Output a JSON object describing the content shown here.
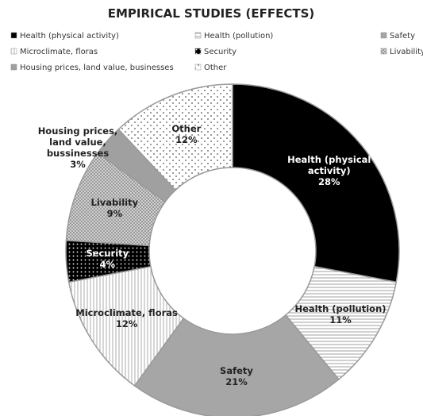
{
  "chart_data": {
    "type": "donut",
    "title": "EMPIRICAL STUDIES  (EFFECTS)",
    "categories": [
      "Health (physical activity)",
      "Health (pollution)",
      "Safety",
      "Microclimate, floras",
      "Security",
      "Livability",
      "Housing prices, land value, businesses",
      "Other"
    ],
    "data_labels": [
      "Health (physical activity)",
      "Health (pollution)",
      "Safety",
      "Microclimate, floras",
      "Security",
      "Livability",
      "Housing prices, land value, bussinesses",
      "Other"
    ],
    "values": [
      28,
      11,
      21,
      12,
      4,
      9,
      3,
      12
    ],
    "value_labels": [
      "28%",
      "11%",
      "21%",
      "12%",
      "4%",
      "9%",
      "3%",
      "12%"
    ],
    "colors": [
      "#000000",
      "#ffffff",
      "#a6a6a6",
      "#ffffff",
      "#000000",
      "#d0d0d0",
      "#a0a0a0",
      "#ffffff"
    ],
    "legend": "top"
  }
}
